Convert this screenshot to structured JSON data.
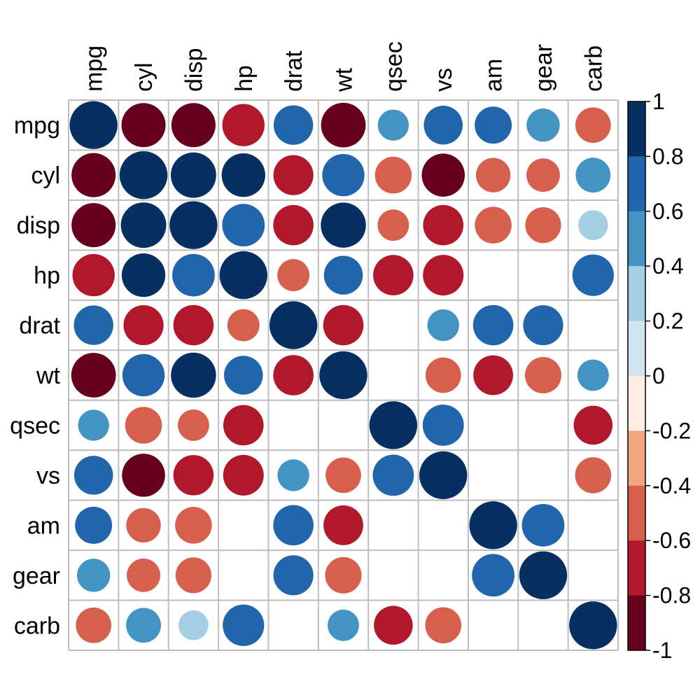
{
  "chart_data": {
    "type": "heatmap",
    "variables": [
      "mpg",
      "cyl",
      "disp",
      "hp",
      "drat",
      "wt",
      "qsec",
      "vs",
      "am",
      "gear",
      "carb"
    ],
    "matrix": [
      [
        1.0,
        -0.85,
        -0.85,
        -0.78,
        0.68,
        -0.87,
        0.42,
        0.66,
        0.6,
        0.48,
        -0.55
      ],
      [
        -0.85,
        1.0,
        0.9,
        0.83,
        -0.7,
        0.78,
        -0.59,
        -0.81,
        -0.52,
        -0.49,
        0.53
      ],
      [
        -0.85,
        0.9,
        1.0,
        0.79,
        -0.71,
        0.89,
        -0.43,
        -0.71,
        -0.59,
        -0.56,
        0.39
      ],
      [
        -0.78,
        0.83,
        0.79,
        1.0,
        -0.45,
        0.66,
        -0.71,
        -0.72,
        null,
        null,
        0.75
      ],
      [
        0.68,
        -0.7,
        -0.71,
        -0.45,
        1.0,
        -0.71,
        null,
        0.44,
        0.71,
        0.7,
        null
      ],
      [
        -0.87,
        0.78,
        0.89,
        0.66,
        -0.71,
        1.0,
        null,
        -0.55,
        -0.69,
        -0.58,
        0.43
      ],
      [
        0.42,
        -0.59,
        -0.43,
        -0.71,
        null,
        null,
        1.0,
        0.74,
        null,
        null,
        -0.66
      ],
      [
        0.66,
        -0.81,
        -0.71,
        -0.72,
        0.44,
        -0.55,
        0.74,
        1.0,
        null,
        null,
        -0.57
      ],
      [
        0.6,
        -0.52,
        -0.59,
        null,
        0.71,
        -0.69,
        null,
        null,
        1.0,
        0.79,
        null
      ],
      [
        0.48,
        -0.49,
        -0.56,
        null,
        0.7,
        -0.58,
        null,
        null,
        0.79,
        1.0,
        null
      ],
      [
        -0.55,
        0.53,
        0.39,
        0.75,
        null,
        0.43,
        -0.66,
        -0.57,
        null,
        null,
        1.0
      ]
    ],
    "colorbar": {
      "ticks": [
        "1",
        "0.8",
        "0.6",
        "0.4",
        "0.2",
        "0",
        "-0.2",
        "-0.4",
        "-0.6",
        "-0.8",
        "-1"
      ],
      "range": [
        -1,
        1
      ],
      "colors": [
        "#67001F",
        "#B2182B",
        "#D6604D",
        "#F4A582",
        "#FDDBC7",
        "#E6EFF4",
        "#D1E5F0",
        "#A7CFE4",
        "#4393C3",
        "#2166AC",
        "#053061"
      ]
    },
    "shape": "circle",
    "grid": true
  }
}
